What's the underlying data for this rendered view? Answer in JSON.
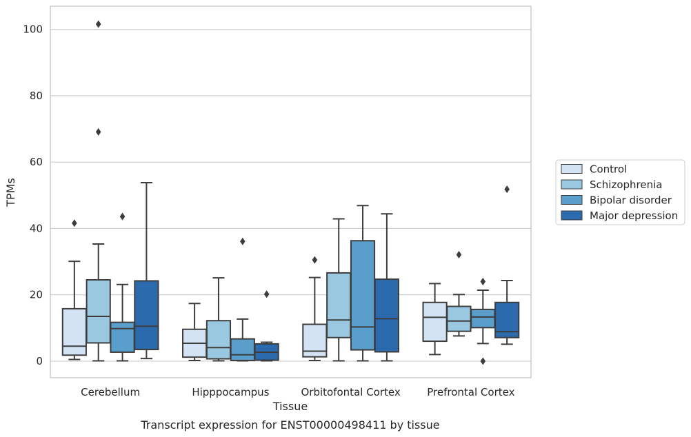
{
  "caption": "Transcript expression for ENST00000498411 by tissue",
  "chart_data": {
    "type": "boxplot",
    "xlabel": "Tissue",
    "ylabel": "TPMs",
    "ylim": [
      -5,
      107
    ],
    "yticks": [
      0,
      20,
      40,
      60,
      80,
      100
    ],
    "grid": true,
    "legend_position": "right",
    "categories": [
      "Cerebellum",
      "Hipppocampus",
      "Orbitofontal Cortex",
      "Prefrontal Cortex"
    ],
    "series": [
      {
        "name": "Control",
        "color": "#d3e3f3",
        "boxes": [
          {
            "min": 0.5,
            "q1": 1.8,
            "median": 4.5,
            "q3": 15.8,
            "max": 30.1,
            "outliers": [
              41.6
            ]
          },
          {
            "min": 0.2,
            "q1": 1.2,
            "median": 5.4,
            "q3": 9.6,
            "max": 17.4,
            "outliers": []
          },
          {
            "min": 0.2,
            "q1": 1.3,
            "median": 3.0,
            "q3": 11.1,
            "max": 25.2,
            "outliers": [
              30.5
            ]
          },
          {
            "min": 2.0,
            "q1": 6.0,
            "median": 13.2,
            "q3": 17.7,
            "max": 23.4,
            "outliers": []
          }
        ]
      },
      {
        "name": "Schizophrenia",
        "color": "#9ac8e0",
        "boxes": [
          {
            "min": 0.1,
            "q1": 5.5,
            "median": 13.5,
            "q3": 24.5,
            "max": 35.3,
            "outliers": [
              101.6,
              69.1
            ]
          },
          {
            "min": 0.1,
            "q1": 0.7,
            "median": 4.1,
            "q3": 12.2,
            "max": 25.1,
            "outliers": []
          },
          {
            "min": 0.1,
            "q1": 7.1,
            "median": 12.4,
            "q3": 26.6,
            "max": 42.9,
            "outliers": []
          },
          {
            "min": 7.6,
            "q1": 9.0,
            "median": 12.1,
            "q3": 16.5,
            "max": 20.1,
            "outliers": [
              32.1
            ]
          }
        ]
      },
      {
        "name": "Bipolar disorder",
        "color": "#5a9ecb",
        "boxes": [
          {
            "min": 0.1,
            "q1": 2.7,
            "median": 9.8,
            "q3": 11.7,
            "max": 23.1,
            "outliers": [
              43.6
            ]
          },
          {
            "min": 0.1,
            "q1": 0.2,
            "median": 1.9,
            "q3": 6.7,
            "max": 12.7,
            "outliers": [
              36.1
            ]
          },
          {
            "min": 0.1,
            "q1": 3.4,
            "median": 10.3,
            "q3": 36.3,
            "max": 46.9,
            "outliers": []
          },
          {
            "min": 5.3,
            "q1": 10.1,
            "median": 13.3,
            "q3": 15.6,
            "max": 21.4,
            "outliers": [
              24.0,
              0.0
            ]
          }
        ]
      },
      {
        "name": "Major depression",
        "color": "#2a6aad",
        "boxes": [
          {
            "min": 0.8,
            "q1": 3.5,
            "median": 10.5,
            "q3": 24.2,
            "max": 53.8,
            "outliers": []
          },
          {
            "min": 0.1,
            "q1": 0.3,
            "median": 2.7,
            "q3": 5.2,
            "max": 5.7,
            "outliers": [
              20.2
            ]
          },
          {
            "min": 0.1,
            "q1": 2.8,
            "median": 12.8,
            "q3": 24.7,
            "max": 44.4,
            "outliers": []
          },
          {
            "min": 5.1,
            "q1": 7.1,
            "median": 8.9,
            "q3": 17.7,
            "max": 24.3,
            "outliers": [
              51.8
            ]
          }
        ]
      }
    ]
  }
}
